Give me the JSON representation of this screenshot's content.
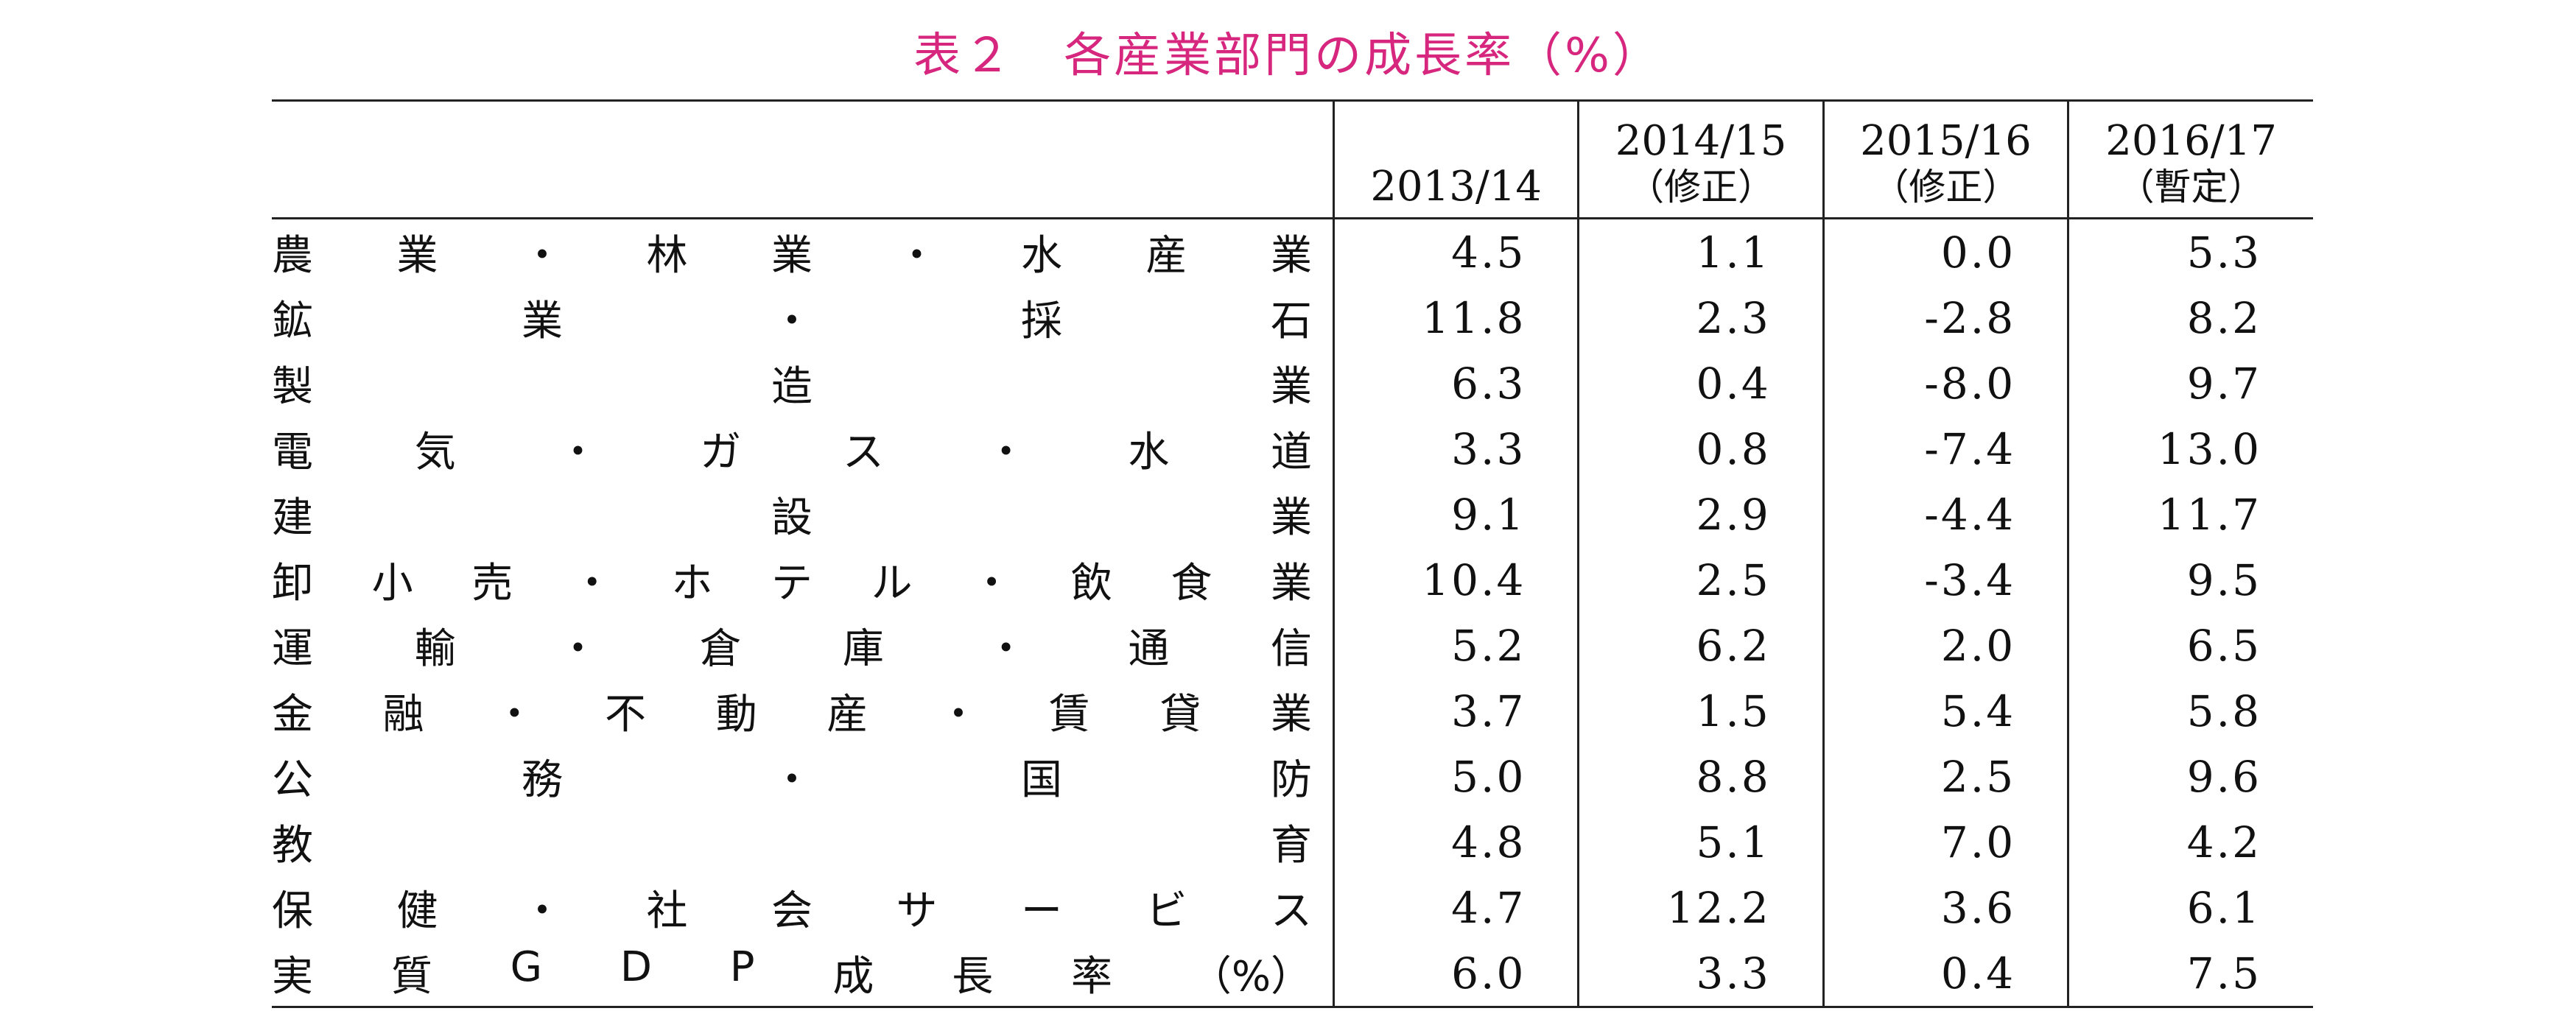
{
  "title": "表２　各産業部門の成長率（%）",
  "table": {
    "columns": [
      {
        "year": "2013/14",
        "note": ""
      },
      {
        "year": "2014/15",
        "note": "（修正）"
      },
      {
        "year": "2015/16",
        "note": "（修正）"
      },
      {
        "year": "2016/17",
        "note": "（暫定）"
      }
    ],
    "rows": [
      {
        "label": "農業・林業・水産業",
        "values": [
          "4.5",
          "1.1",
          "0.0",
          "5.3"
        ]
      },
      {
        "label": "鉱業・採石",
        "values": [
          "11.8",
          "2.3",
          "-2.8",
          "8.2"
        ]
      },
      {
        "label": "製造業",
        "values": [
          "6.3",
          "0.4",
          "-8.0",
          "9.7"
        ]
      },
      {
        "label": "電気・ガス・水道",
        "values": [
          "3.3",
          "0.8",
          "-7.4",
          "13.0"
        ]
      },
      {
        "label": "建設業",
        "values": [
          "9.1",
          "2.9",
          "-4.4",
          "11.7"
        ]
      },
      {
        "label": "卸小売・ホテル・飲食業",
        "values": [
          "10.4",
          "2.5",
          "-3.4",
          "9.5"
        ]
      },
      {
        "label": "運輸・倉庫・通信",
        "values": [
          "5.2",
          "6.2",
          "2.0",
          "6.5"
        ]
      },
      {
        "label": "金融・不動産・賃貸業",
        "values": [
          "3.7",
          "1.5",
          "5.4",
          "5.8"
        ]
      },
      {
        "label": "公務・国防",
        "values": [
          "5.0",
          "8.8",
          "2.5",
          "9.6"
        ]
      },
      {
        "label": "教育",
        "values": [
          "4.8",
          "5.1",
          "7.0",
          "4.2"
        ]
      },
      {
        "label": "保健・社会サービス",
        "values": [
          "4.7",
          "12.2",
          "3.6",
          "6.1"
        ]
      },
      {
        "label": "実質GDP成長率（%）",
        "values": [
          "6.0",
          "3.3",
          "0.4",
          "7.5"
        ]
      }
    ]
  }
}
